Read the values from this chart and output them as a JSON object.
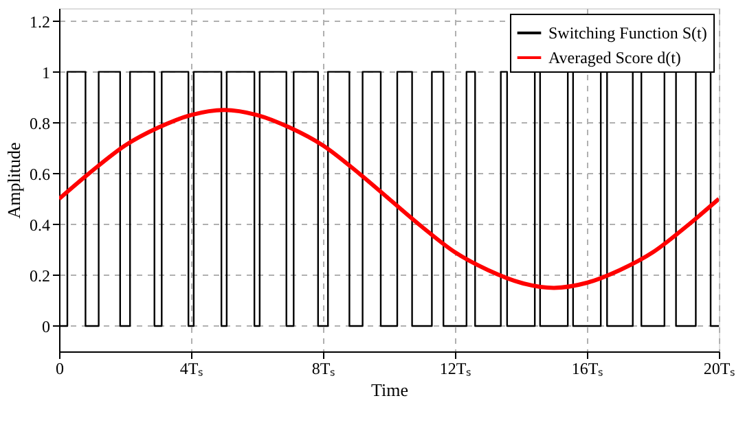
{
  "chart_data": {
    "type": "line",
    "xlabel": "Time",
    "ylabel": "Amplitude",
    "xlim": [
      0,
      20
    ],
    "ylim": [
      -0.1,
      1.25
    ],
    "xticks": [
      0,
      {
        "value": 4,
        "label": "4Tₛ"
      },
      {
        "value": 8,
        "label": "8Tₛ"
      },
      {
        "value": 12,
        "label": "12Tₛ"
      },
      {
        "value": 16,
        "label": "16Tₛ"
      },
      {
        "value": 20,
        "label": "20Tₛ"
      }
    ],
    "yticks": [
      0,
      0.2,
      0.4,
      0.6,
      0.8,
      1,
      1.2
    ],
    "grid": true,
    "legend": "top right",
    "series": [
      {
        "name": "Switching Function S(t)",
        "type": "step",
        "color": "#000000",
        "x": [
          0,
          0.25,
          0.8,
          1.2,
          1.85,
          2.15,
          2.89,
          3.11,
          3.92,
          4.08,
          4.92,
          5.08,
          5.92,
          6.08,
          6.89,
          7.11,
          7.85,
          8.15,
          8.8,
          9.2,
          9.75,
          10.25,
          10.7,
          11.3,
          11.65,
          12.35,
          12.61,
          13.39,
          13.58,
          14.42,
          14.58,
          15.42,
          15.58,
          16.42,
          16.61,
          17.39,
          17.65,
          18.35,
          18.7,
          19.3,
          19.75,
          20
        ],
        "values": [
          0,
          1,
          0,
          1,
          0,
          1,
          0,
          1,
          0,
          1,
          0,
          1,
          0,
          1,
          0,
          1,
          0,
          1,
          0,
          1,
          0,
          1,
          0,
          1,
          0,
          1,
          0,
          1,
          0,
          1,
          0,
          1,
          0,
          1,
          0,
          1,
          0,
          1,
          0,
          1,
          0,
          0
        ]
      },
      {
        "name": "Averaged Score d(t)",
        "color": "#ff0000",
        "x": [
          0,
          1,
          2,
          3,
          4,
          5,
          6,
          7,
          8,
          9,
          10,
          11,
          12,
          13,
          14,
          15,
          16,
          17,
          18,
          19,
          20
        ],
        "values": [
          0.5,
          0.61,
          0.71,
          0.78,
          0.83,
          0.85,
          0.83,
          0.78,
          0.71,
          0.61,
          0.5,
          0.39,
          0.29,
          0.22,
          0.17,
          0.15,
          0.17,
          0.22,
          0.29,
          0.39,
          0.5
        ]
      }
    ]
  }
}
